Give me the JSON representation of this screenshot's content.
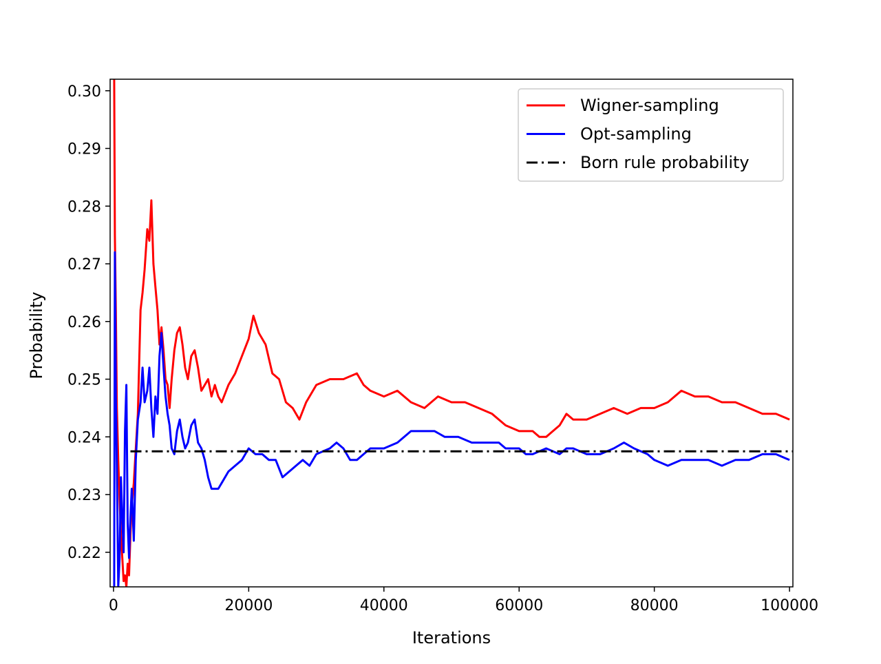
{
  "chart_data": {
    "type": "line",
    "xlabel": "Iterations",
    "ylabel": "Probability",
    "xlim": [
      -500,
      100500
    ],
    "ylim": [
      0.214,
      0.302
    ],
    "grid": false,
    "legend_position": "top-right",
    "x_ticks": [
      0,
      20000,
      40000,
      60000,
      80000,
      100000
    ],
    "x_tick_labels": [
      "0",
      "20000",
      "40000",
      "60000",
      "80000",
      "100000"
    ],
    "y_ticks": [
      0.22,
      0.23,
      0.24,
      0.25,
      0.26,
      0.27,
      0.28,
      0.29,
      0.3
    ],
    "y_tick_labels": [
      "0.22",
      "0.23",
      "0.24",
      "0.25",
      "0.26",
      "0.27",
      "0.28",
      "0.29",
      "0.30"
    ],
    "series": [
      {
        "name": "Wigner-sampling",
        "color": "#ff0000",
        "style": "solid",
        "x": [
          0,
          100,
          200,
          350,
          500,
          700,
          900,
          1100,
          1300,
          1500,
          1700,
          1900,
          2100,
          2300,
          2500,
          2700,
          3000,
          3300,
          3600,
          4000,
          4300,
          4600,
          5000,
          5300,
          5600,
          5900,
          6200,
          6500,
          6800,
          7100,
          7400,
          7700,
          8000,
          8300,
          8600,
          9000,
          9400,
          9800,
          10200,
          10600,
          11000,
          11500,
          12000,
          12500,
          13000,
          13500,
          14000,
          14500,
          15000,
          15500,
          16000,
          17000,
          18000,
          19000,
          20000,
          20700,
          21500,
          22500,
          23500,
          24500,
          25500,
          26500,
          27500,
          28500,
          30000,
          32000,
          34000,
          36000,
          37000,
          38000,
          40000,
          42000,
          44000,
          46000,
          48000,
          50000,
          52000,
          54000,
          56000,
          58000,
          60000,
          62000,
          63000,
          64000,
          65000,
          66000,
          67000,
          68000,
          70000,
          72000,
          74000,
          76000,
          78000,
          80000,
          82000,
          84000,
          86000,
          88000,
          90000,
          92000,
          94000,
          96000,
          98000,
          100000
        ],
        "values": [
          0.302,
          0.302,
          0.275,
          0.262,
          0.245,
          0.236,
          0.229,
          0.223,
          0.219,
          0.215,
          0.216,
          0.214,
          0.218,
          0.216,
          0.223,
          0.228,
          0.232,
          0.238,
          0.244,
          0.262,
          0.265,
          0.269,
          0.276,
          0.274,
          0.281,
          0.27,
          0.266,
          0.262,
          0.256,
          0.259,
          0.255,
          0.25,
          0.249,
          0.245,
          0.25,
          0.255,
          0.258,
          0.259,
          0.256,
          0.252,
          0.25,
          0.254,
          0.255,
          0.252,
          0.248,
          0.249,
          0.25,
          0.247,
          0.249,
          0.247,
          0.246,
          0.249,
          0.251,
          0.254,
          0.257,
          0.261,
          0.258,
          0.256,
          0.251,
          0.25,
          0.246,
          0.245,
          0.243,
          0.246,
          0.249,
          0.25,
          0.25,
          0.251,
          0.249,
          0.248,
          0.247,
          0.248,
          0.246,
          0.245,
          0.247,
          0.246,
          0.246,
          0.245,
          0.244,
          0.242,
          0.241,
          0.241,
          0.24,
          0.24,
          0.241,
          0.242,
          0.244,
          0.243,
          0.243,
          0.244,
          0.245,
          0.244,
          0.245,
          0.245,
          0.246,
          0.248,
          0.247,
          0.247,
          0.246,
          0.246,
          0.245,
          0.244,
          0.244,
          0.243
        ]
      },
      {
        "name": "Opt-sampling",
        "color": "#0000ff",
        "style": "solid",
        "x": [
          0,
          100,
          200,
          350,
          500,
          700,
          900,
          1100,
          1300,
          1500,
          1700,
          1900,
          2100,
          2300,
          2500,
          2700,
          3000,
          3300,
          3600,
          4000,
          4300,
          4600,
          5000,
          5300,
          5600,
          5900,
          6200,
          6500,
          6800,
          7100,
          7400,
          7700,
          8000,
          8300,
          8600,
          9000,
          9400,
          9800,
          10200,
          10600,
          11000,
          11500,
          12000,
          12500,
          13000,
          13500,
          14000,
          14500,
          15000,
          15500,
          16000,
          17000,
          18000,
          19000,
          20000,
          21000,
          22000,
          23000,
          24000,
          25000,
          26000,
          27000,
          28000,
          29000,
          30000,
          32000,
          33000,
          34000,
          35000,
          36000,
          37000,
          38000,
          40000,
          42000,
          44000,
          46000,
          47500,
          49000,
          51000,
          53000,
          55000,
          57000,
          58000,
          60000,
          61000,
          62000,
          64000,
          66000,
          67000,
          68000,
          70000,
          72000,
          74000,
          75500,
          77000,
          79000,
          80000,
          82000,
          84000,
          86000,
          88000,
          90000,
          92000,
          94000,
          96000,
          98000,
          100000
        ],
        "values": [
          0.214,
          0.214,
          0.272,
          0.247,
          0.235,
          0.214,
          0.219,
          0.233,
          0.226,
          0.22,
          0.241,
          0.249,
          0.225,
          0.219,
          0.226,
          0.231,
          0.222,
          0.236,
          0.243,
          0.246,
          0.252,
          0.246,
          0.248,
          0.252,
          0.245,
          0.24,
          0.247,
          0.244,
          0.254,
          0.258,
          0.252,
          0.247,
          0.244,
          0.242,
          0.238,
          0.237,
          0.241,
          0.243,
          0.24,
          0.238,
          0.239,
          0.242,
          0.243,
          0.239,
          0.238,
          0.236,
          0.233,
          0.231,
          0.231,
          0.231,
          0.232,
          0.234,
          0.235,
          0.236,
          0.238,
          0.237,
          0.237,
          0.236,
          0.236,
          0.233,
          0.234,
          0.235,
          0.236,
          0.235,
          0.237,
          0.238,
          0.239,
          0.238,
          0.236,
          0.236,
          0.237,
          0.238,
          0.238,
          0.239,
          0.241,
          0.241,
          0.241,
          0.24,
          0.24,
          0.239,
          0.239,
          0.239,
          0.238,
          0.238,
          0.237,
          0.237,
          0.238,
          0.237,
          0.238,
          0.238,
          0.237,
          0.237,
          0.238,
          0.239,
          0.238,
          0.237,
          0.236,
          0.235,
          0.236,
          0.236,
          0.236,
          0.235,
          0.236,
          0.236,
          0.237,
          0.237,
          0.236
        ]
      },
      {
        "name": "Born rule probability",
        "color": "#000000",
        "style": "dashdot",
        "x": [
          2500,
          100500
        ],
        "values": [
          0.2375,
          0.2375
        ]
      }
    ]
  }
}
